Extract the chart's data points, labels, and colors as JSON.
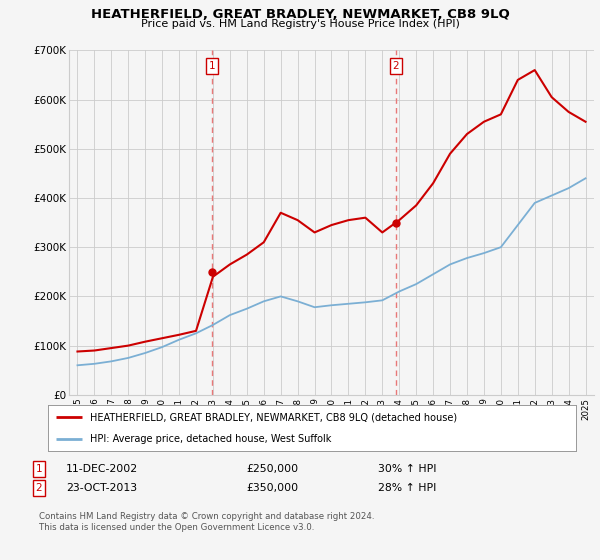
{
  "title": "HEATHERFIELD, GREAT BRADLEY, NEWMARKET, CB8 9LQ",
  "subtitle": "Price paid vs. HM Land Registry's House Price Index (HPI)",
  "legend_line1": "HEATHERFIELD, GREAT BRADLEY, NEWMARKET, CB8 9LQ (detached house)",
  "legend_line2": "HPI: Average price, detached house, West Suffolk",
  "annotation1_label": "1",
  "annotation1_date": "11-DEC-2002",
  "annotation1_price": "£250,000",
  "annotation1_hpi": "30% ↑ HPI",
  "annotation2_label": "2",
  "annotation2_date": "23-OCT-2013",
  "annotation2_price": "£350,000",
  "annotation2_hpi": "28% ↑ HPI",
  "footer": "Contains HM Land Registry data © Crown copyright and database right 2024.\nThis data is licensed under the Open Government Licence v3.0.",
  "red_color": "#cc0000",
  "blue_color": "#7bafd4",
  "vline_color": "#e87878",
  "background_color": "#f5f5f5",
  "grid_color": "#cccccc",
  "years": [
    1995,
    1996,
    1997,
    1998,
    1999,
    2000,
    2001,
    2002,
    2003,
    2004,
    2005,
    2006,
    2007,
    2008,
    2009,
    2010,
    2011,
    2012,
    2013,
    2014,
    2015,
    2016,
    2017,
    2018,
    2019,
    2020,
    2021,
    2022,
    2023,
    2024,
    2025
  ],
  "hpi_values": [
    60000,
    63000,
    68000,
    75000,
    85000,
    97000,
    112000,
    125000,
    142000,
    162000,
    175000,
    190000,
    200000,
    190000,
    178000,
    182000,
    185000,
    188000,
    192000,
    210000,
    225000,
    245000,
    265000,
    278000,
    288000,
    300000,
    345000,
    390000,
    405000,
    420000,
    440000
  ],
  "price_paid_values": [
    88000,
    90000,
    95000,
    100000,
    108000,
    115000,
    122000,
    130000,
    240000,
    265000,
    285000,
    310000,
    370000,
    355000,
    330000,
    345000,
    355000,
    360000,
    330000,
    355000,
    385000,
    430000,
    490000,
    530000,
    555000,
    570000,
    640000,
    660000,
    605000,
    575000,
    555000
  ],
  "sale1_year": 2002.95,
  "sale1_price": 250000,
  "sale2_year": 2013.8,
  "sale2_price": 350000,
  "ylim": [
    0,
    700000
  ],
  "yticks": [
    0,
    100000,
    200000,
    300000,
    400000,
    500000,
    600000,
    700000
  ],
  "ytick_labels": [
    "£0",
    "£100K",
    "£200K",
    "£300K",
    "£400K",
    "£500K",
    "£600K",
    "£700K"
  ]
}
